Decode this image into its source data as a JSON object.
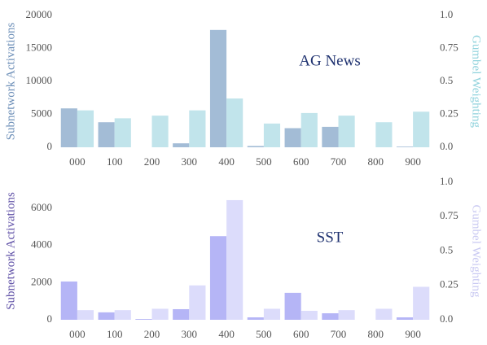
{
  "chart_data": [
    {
      "type": "bar",
      "title": "AG News",
      "categories": [
        "000",
        "100",
        "200",
        "300",
        "400",
        "500",
        "600",
        "700",
        "800",
        "900"
      ],
      "series": [
        {
          "name": "Subnetwork Activations",
          "color": "#a3bcd6",
          "values": [
            5900,
            3800,
            0,
            600,
            17800,
            200,
            2900,
            3100,
            0,
            100
          ]
        },
        {
          "name": "Gumbel Weighting",
          "color": "#c1e4eb",
          "axis": "y2",
          "values": [
            0.28,
            0.22,
            0.24,
            0.28,
            0.37,
            0.18,
            0.26,
            0.24,
            0.19,
            0.27
          ]
        }
      ],
      "ylabel": "Subnetwork Activations",
      "ylabel_color": "#6d8fb8",
      "y2label": "Gumbel Weighting",
      "y2label_color": "#8fd2dc",
      "ylim": [
        0,
        20000
      ],
      "yticks": [
        0,
        5000,
        10000,
        15000,
        20000
      ],
      "y2lim": [
        0,
        1
      ],
      "y2ticks": [
        {
          "value": 0,
          "label": "0.0"
        },
        0.25,
        0.5,
        0.75,
        {
          "value": 1,
          "label": "1.0"
        }
      ],
      "title_color": "#1f3270",
      "grid": false
    },
    {
      "type": "bar",
      "title": "SST",
      "categories": [
        "000",
        "100",
        "200",
        "300",
        "400",
        "500",
        "600",
        "700",
        "800",
        "900"
      ],
      "series": [
        {
          "name": "Subnetwork Activations",
          "color": "#b5b5f6",
          "values": [
            2060,
            400,
            40,
            570,
            4500,
            130,
            1450,
            350,
            0,
            130
          ]
        },
        {
          "name": "Gumbel Weighting",
          "color": "#dcdcfb",
          "axis": "y2",
          "values": [
            0.07,
            0.07,
            0.08,
            0.25,
            0.87,
            0.08,
            0.065,
            0.07,
            0.08,
            0.24
          ]
        }
      ],
      "ylabel": "Subnetwork Activations",
      "ylabel_color": "#5e4fa6",
      "y2label": "Gumbel Weighting",
      "y2label_color": "#c9c9f2",
      "ylim": [
        0,
        7400
      ],
      "yticks": [
        0,
        2000,
        4000,
        6000
      ],
      "y2lim": [
        0,
        1
      ],
      "y2ticks": [
        {
          "value": 0,
          "label": "0.0"
        },
        0.25,
        0.5,
        0.75,
        {
          "value": 1,
          "label": "1.0"
        }
      ],
      "title_color": "#1f3270",
      "grid": false
    }
  ]
}
